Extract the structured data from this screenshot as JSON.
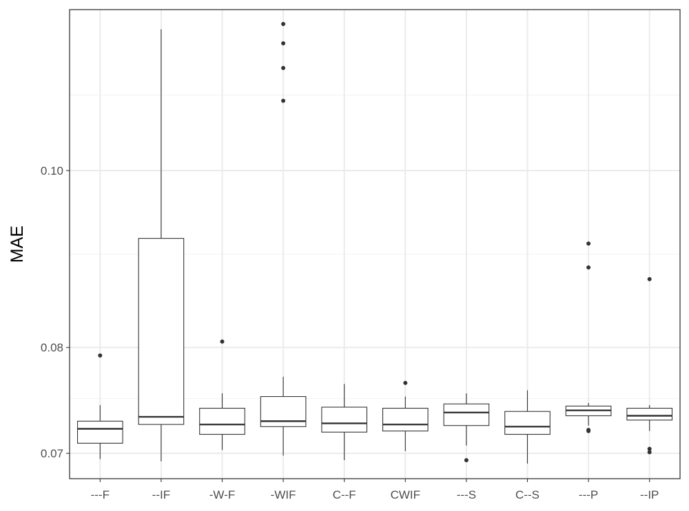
{
  "chart_data": {
    "type": "boxplot",
    "title": "",
    "xlabel": "",
    "ylabel": "MAE",
    "y_scale": "log",
    "ylim": [
      0.0678,
      0.1225
    ],
    "y_ticks": [
      0.07,
      0.08,
      0.1
    ],
    "y_tick_labels": [
      "0.07",
      "0.08",
      "0.10"
    ],
    "y_minor_ticks": [
      0.075,
      0.09,
      0.11
    ],
    "grid": true,
    "legend": "none",
    "colors": {
      "box_stroke": "#333333",
      "box_fill": "#ffffff",
      "grid_major": "#ebebeb",
      "grid_minor": "#f2f2f2",
      "panel_border": "#333333",
      "tick_label": "#4d4d4d"
    },
    "categories": [
      "---F",
      "--IF",
      "-W-F",
      "-WIF",
      "C--F",
      "CWIF",
      "---S",
      "C--S",
      "---P",
      "--IP"
    ],
    "boxes": [
      {
        "category": "---F",
        "whisker_low": 0.0695,
        "q1": 0.0709,
        "median": 0.0722,
        "q3": 0.0729,
        "whisker_high": 0.0744,
        "outliers": [
          0.0792
        ]
      },
      {
        "category": "--IF",
        "whisker_low": 0.0693,
        "q1": 0.0726,
        "median": 0.0733,
        "q3": 0.0918,
        "whisker_high": 0.1195,
        "outliers": []
      },
      {
        "category": "-W-F",
        "whisker_low": 0.0703,
        "q1": 0.0717,
        "median": 0.0726,
        "q3": 0.0741,
        "whisker_high": 0.0755,
        "outliers": [
          0.0806
        ]
      },
      {
        "category": "-WIF",
        "whisker_low": 0.0698,
        "q1": 0.0724,
        "median": 0.0729,
        "q3": 0.0752,
        "whisker_high": 0.0771,
        "outliers": [
          0.1092,
          0.1138,
          0.1174,
          0.1203
        ]
      },
      {
        "category": "C--F",
        "whisker_low": 0.0694,
        "q1": 0.0719,
        "median": 0.0727,
        "q3": 0.0742,
        "whisker_high": 0.0764,
        "outliers": []
      },
      {
        "category": "CWIF",
        "whisker_low": 0.0702,
        "q1": 0.072,
        "median": 0.0726,
        "q3": 0.0741,
        "whisker_high": 0.0752,
        "outliers": [
          0.0765
        ]
      },
      {
        "category": "---S",
        "whisker_low": 0.0707,
        "q1": 0.0725,
        "median": 0.0737,
        "q3": 0.0745,
        "whisker_high": 0.0755,
        "outliers": [
          0.0694
        ]
      },
      {
        "category": "C--S",
        "whisker_low": 0.0691,
        "q1": 0.0717,
        "median": 0.0724,
        "q3": 0.0738,
        "whisker_high": 0.0758,
        "outliers": []
      },
      {
        "category": "---P",
        "whisker_low": 0.0725,
        "q1": 0.0734,
        "median": 0.0739,
        "q3": 0.0743,
        "whisker_high": 0.0746,
        "outliers": [
          0.0721,
          0.072,
          0.0912,
          0.0885
        ]
      },
      {
        "category": "--IP",
        "whisker_low": 0.072,
        "q1": 0.073,
        "median": 0.0734,
        "q3": 0.0741,
        "whisker_high": 0.0744,
        "outliers": [
          0.0704,
          0.0701,
          0.0872
        ]
      }
    ]
  }
}
